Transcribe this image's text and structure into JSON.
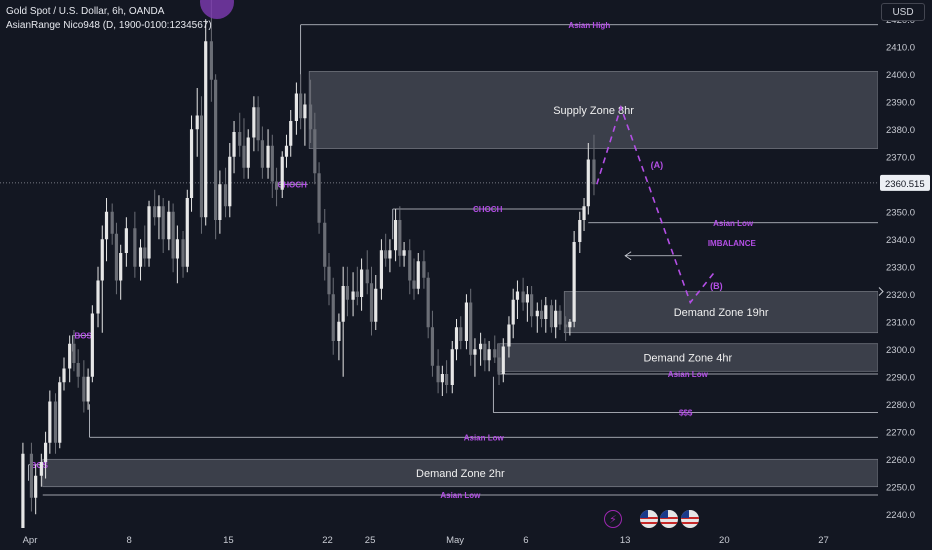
{
  "window": {
    "symbol_title": "Gold Spot / U.S. Dollar, 6h, OANDA",
    "indicator": "AsianRange Nico948 (D, 1900-0100:1234567)",
    "currency": "USD",
    "current_price": "2360.515"
  },
  "icons": [
    "flash-icon",
    "us-flag-icon",
    "us-flag-icon",
    "us-flag-icon"
  ],
  "colors": {
    "background": "#131722",
    "bull_candle": "#e6e6e6",
    "bear_candle": "#6b6e76",
    "annotation_purple": "#b44fe6",
    "zone_fill": "#5d606b",
    "line_white": "#cfd2da"
  },
  "chart_data": {
    "type": "candlestick",
    "symbol": "XAUUSD",
    "timeframe": "6h",
    "y_axis": {
      "min": 2235,
      "max": 2427,
      "ticks": [
        2240,
        2250,
        2260,
        2270,
        2280,
        2290,
        2300,
        2310,
        2320,
        2330,
        2340,
        2350,
        2360,
        2370,
        2380,
        2390,
        2400,
        2410,
        2420
      ]
    },
    "x_axis": {
      "labels": [
        {
          "label": "Apr",
          "day": 1
        },
        {
          "label": "8",
          "day": 8
        },
        {
          "label": "15",
          "day": 15
        },
        {
          "label": "22",
          "day": 22
        },
        {
          "label": "25",
          "day": 25
        },
        {
          "label": "May",
          "day": 31
        },
        {
          "label": "6",
          "day": 36
        },
        {
          "label": "13",
          "day": 43
        },
        {
          "label": "20",
          "day": 50
        },
        {
          "label": "27",
          "day": 57
        }
      ]
    },
    "candles": [
      {
        "day": 0.5,
        "o": 2231,
        "h": 2266,
        "l": 2228,
        "c": 2262
      },
      {
        "day": 1.1,
        "o": 2262,
        "h": 2266,
        "l": 2241,
        "c": 2246
      },
      {
        "day": 1.4,
        "o": 2246,
        "h": 2258,
        "l": 2240,
        "c": 2254
      },
      {
        "day": 1.8,
        "o": 2254,
        "h": 2262,
        "l": 2250,
        "c": 2259
      },
      {
        "day": 2.1,
        "o": 2259,
        "h": 2270,
        "l": 2253,
        "c": 2266
      },
      {
        "day": 2.4,
        "o": 2266,
        "h": 2285,
        "l": 2262,
        "c": 2281
      },
      {
        "day": 2.8,
        "o": 2281,
        "h": 2284,
        "l": 2262,
        "c": 2266
      },
      {
        "day": 3.1,
        "o": 2266,
        "h": 2290,
        "l": 2264,
        "c": 2288
      },
      {
        "day": 3.4,
        "o": 2288,
        "h": 2297,
        "l": 2285,
        "c": 2293
      },
      {
        "day": 3.8,
        "o": 2293,
        "h": 2305,
        "l": 2288,
        "c": 2302
      },
      {
        "day": 4.1,
        "o": 2302,
        "h": 2307,
        "l": 2292,
        "c": 2295
      },
      {
        "day": 4.4,
        "o": 2295,
        "h": 2300,
        "l": 2286,
        "c": 2290
      },
      {
        "day": 4.8,
        "o": 2290,
        "h": 2296,
        "l": 2277,
        "c": 2281
      },
      {
        "day": 5.1,
        "o": 2281,
        "h": 2293,
        "l": 2278,
        "c": 2290
      },
      {
        "day": 5.4,
        "o": 2290,
        "h": 2316,
        "l": 2288,
        "c": 2313
      },
      {
        "day": 5.8,
        "o": 2313,
        "h": 2330,
        "l": 2308,
        "c": 2325
      },
      {
        "day": 6.1,
        "o": 2325,
        "h": 2345,
        "l": 2306,
        "c": 2340
      },
      {
        "day": 6.4,
        "o": 2340,
        "h": 2355,
        "l": 2332,
        "c": 2350
      },
      {
        "day": 6.8,
        "o": 2350,
        "h": 2353,
        "l": 2338,
        "c": 2342
      },
      {
        "day": 7.1,
        "o": 2342,
        "h": 2346,
        "l": 2320,
        "c": 2325
      },
      {
        "day": 7.4,
        "o": 2325,
        "h": 2338,
        "l": 2318,
        "c": 2335
      },
      {
        "day": 7.8,
        "o": 2335,
        "h": 2348,
        "l": 2330,
        "c": 2344
      },
      {
        "day": 8.4,
        "o": 2344,
        "h": 2350,
        "l": 2326,
        "c": 2330
      },
      {
        "day": 8.8,
        "o": 2330,
        "h": 2340,
        "l": 2325,
        "c": 2337
      },
      {
        "day": 9.1,
        "o": 2337,
        "h": 2345,
        "l": 2330,
        "c": 2333
      },
      {
        "day": 9.4,
        "o": 2333,
        "h": 2354,
        "l": 2330,
        "c": 2352
      },
      {
        "day": 9.8,
        "o": 2352,
        "h": 2358,
        "l": 2345,
        "c": 2348
      },
      {
        "day": 10.1,
        "o": 2348,
        "h": 2356,
        "l": 2340,
        "c": 2352
      },
      {
        "day": 10.4,
        "o": 2352,
        "h": 2355,
        "l": 2335,
        "c": 2340
      },
      {
        "day": 10.8,
        "o": 2340,
        "h": 2354,
        "l": 2336,
        "c": 2350
      },
      {
        "day": 11.1,
        "o": 2350,
        "h": 2353,
        "l": 2328,
        "c": 2333
      },
      {
        "day": 11.4,
        "o": 2333,
        "h": 2345,
        "l": 2324,
        "c": 2340
      },
      {
        "day": 11.8,
        "o": 2340,
        "h": 2343,
        "l": 2326,
        "c": 2330
      },
      {
        "day": 12.1,
        "o": 2330,
        "h": 2358,
        "l": 2328,
        "c": 2355
      },
      {
        "day": 12.4,
        "o": 2355,
        "h": 2385,
        "l": 2350,
        "c": 2380
      },
      {
        "day": 12.8,
        "o": 2380,
        "h": 2395,
        "l": 2370,
        "c": 2385
      },
      {
        "day": 13.1,
        "o": 2385,
        "h": 2392,
        "l": 2342,
        "c": 2348
      },
      {
        "day": 13.4,
        "o": 2348,
        "h": 2420,
        "l": 2345,
        "c": 2412
      },
      {
        "day": 13.8,
        "o": 2412,
        "h": 2431,
        "l": 2390,
        "c": 2398
      },
      {
        "day": 14.1,
        "o": 2398,
        "h": 2400,
        "l": 2340,
        "c": 2347
      },
      {
        "day": 14.4,
        "o": 2347,
        "h": 2365,
        "l": 2342,
        "c": 2360
      },
      {
        "day": 14.8,
        "o": 2360,
        "h": 2366,
        "l": 2348,
        "c": 2352
      },
      {
        "day": 15.1,
        "o": 2352,
        "h": 2375,
        "l": 2348,
        "c": 2370
      },
      {
        "day": 15.4,
        "o": 2370,
        "h": 2383,
        "l": 2364,
        "c": 2379
      },
      {
        "day": 15.8,
        "o": 2379,
        "h": 2386,
        "l": 2370,
        "c": 2374
      },
      {
        "day": 16.1,
        "o": 2374,
        "h": 2384,
        "l": 2362,
        "c": 2366
      },
      {
        "day": 16.4,
        "o": 2366,
        "h": 2380,
        "l": 2362,
        "c": 2377
      },
      {
        "day": 16.8,
        "o": 2377,
        "h": 2392,
        "l": 2372,
        "c": 2388
      },
      {
        "day": 17.1,
        "o": 2388,
        "h": 2392,
        "l": 2372,
        "c": 2376
      },
      {
        "day": 17.4,
        "o": 2376,
        "h": 2381,
        "l": 2362,
        "c": 2366
      },
      {
        "day": 17.8,
        "o": 2366,
        "h": 2380,
        "l": 2362,
        "c": 2374
      },
      {
        "day": 18.1,
        "o": 2374,
        "h": 2378,
        "l": 2355,
        "c": 2361
      },
      {
        "day": 18.4,
        "o": 2361,
        "h": 2366,
        "l": 2352,
        "c": 2358
      },
      {
        "day": 18.8,
        "o": 2358,
        "h": 2372,
        "l": 2355,
        "c": 2370
      },
      {
        "day": 19.1,
        "o": 2370,
        "h": 2378,
        "l": 2366,
        "c": 2374
      },
      {
        "day": 19.4,
        "o": 2374,
        "h": 2387,
        "l": 2370,
        "c": 2383
      },
      {
        "day": 19.8,
        "o": 2383,
        "h": 2397,
        "l": 2378,
        "c": 2393
      },
      {
        "day": 20.1,
        "o": 2393,
        "h": 2400,
        "l": 2380,
        "c": 2384
      },
      {
        "day": 20.4,
        "o": 2384,
        "h": 2393,
        "l": 2374,
        "c": 2389
      },
      {
        "day": 20.8,
        "o": 2389,
        "h": 2398,
        "l": 2375,
        "c": 2380
      },
      {
        "day": 21.1,
        "o": 2380,
        "h": 2386,
        "l": 2360,
        "c": 2364
      },
      {
        "day": 21.4,
        "o": 2364,
        "h": 2368,
        "l": 2342,
        "c": 2346
      },
      {
        "day": 21.8,
        "o": 2346,
        "h": 2351,
        "l": 2325,
        "c": 2330
      },
      {
        "day": 22.1,
        "o": 2330,
        "h": 2335,
        "l": 2316,
        "c": 2320
      },
      {
        "day": 22.4,
        "o": 2320,
        "h": 2326,
        "l": 2298,
        "c": 2303
      },
      {
        "day": 22.8,
        "o": 2303,
        "h": 2313,
        "l": 2296,
        "c": 2310
      },
      {
        "day": 23.1,
        "o": 2310,
        "h": 2330,
        "l": 2290,
        "c": 2323
      },
      {
        "day": 23.4,
        "o": 2323,
        "h": 2330,
        "l": 2312,
        "c": 2318
      },
      {
        "day": 23.8,
        "o": 2318,
        "h": 2328,
        "l": 2312,
        "c": 2321
      },
      {
        "day": 24.1,
        "o": 2321,
        "h": 2330,
        "l": 2316,
        "c": 2319
      },
      {
        "day": 24.4,
        "o": 2319,
        "h": 2333,
        "l": 2314,
        "c": 2329
      },
      {
        "day": 24.8,
        "o": 2329,
        "h": 2336,
        "l": 2320,
        "c": 2324
      },
      {
        "day": 25.1,
        "o": 2324,
        "h": 2330,
        "l": 2305,
        "c": 2310
      },
      {
        "day": 25.4,
        "o": 2310,
        "h": 2327,
        "l": 2307,
        "c": 2322
      },
      {
        "day": 25.8,
        "o": 2322,
        "h": 2340,
        "l": 2318,
        "c": 2336
      },
      {
        "day": 26.1,
        "o": 2336,
        "h": 2342,
        "l": 2330,
        "c": 2333
      },
      {
        "day": 26.4,
        "o": 2333,
        "h": 2340,
        "l": 2328,
        "c": 2336
      },
      {
        "day": 26.8,
        "o": 2336,
        "h": 2351,
        "l": 2332,
        "c": 2347
      },
      {
        "day": 27.1,
        "o": 2347,
        "h": 2352,
        "l": 2330,
        "c": 2334
      },
      {
        "day": 27.4,
        "o": 2334,
        "h": 2339,
        "l": 2330,
        "c": 2336
      },
      {
        "day": 27.8,
        "o": 2336,
        "h": 2340,
        "l": 2320,
        "c": 2325
      },
      {
        "day": 28.1,
        "o": 2325,
        "h": 2333,
        "l": 2318,
        "c": 2322
      },
      {
        "day": 28.4,
        "o": 2322,
        "h": 2335,
        "l": 2320,
        "c": 2332
      },
      {
        "day": 28.8,
        "o": 2332,
        "h": 2336,
        "l": 2322,
        "c": 2326
      },
      {
        "day": 29.1,
        "o": 2326,
        "h": 2328,
        "l": 2304,
        "c": 2308
      },
      {
        "day": 29.4,
        "o": 2308,
        "h": 2314,
        "l": 2290,
        "c": 2294
      },
      {
        "day": 29.8,
        "o": 2294,
        "h": 2300,
        "l": 2284,
        "c": 2288
      },
      {
        "day": 30.1,
        "o": 2288,
        "h": 2294,
        "l": 2283,
        "c": 2291
      },
      {
        "day": 30.4,
        "o": 2291,
        "h": 2296,
        "l": 2284,
        "c": 2287
      },
      {
        "day": 30.8,
        "o": 2287,
        "h": 2303,
        "l": 2284,
        "c": 2300
      },
      {
        "day": 31.1,
        "o": 2300,
        "h": 2311,
        "l": 2296,
        "c": 2308
      },
      {
        "day": 31.4,
        "o": 2308,
        "h": 2312,
        "l": 2300,
        "c": 2303
      },
      {
        "day": 31.8,
        "o": 2303,
        "h": 2320,
        "l": 2300,
        "c": 2317
      },
      {
        "day": 32.1,
        "o": 2317,
        "h": 2322,
        "l": 2294,
        "c": 2298
      },
      {
        "day": 32.4,
        "o": 2298,
        "h": 2304,
        "l": 2290,
        "c": 2300
      },
      {
        "day": 32.8,
        "o": 2300,
        "h": 2306,
        "l": 2294,
        "c": 2302
      },
      {
        "day": 33.1,
        "o": 2302,
        "h": 2304,
        "l": 2292,
        "c": 2296
      },
      {
        "day": 33.4,
        "o": 2296,
        "h": 2303,
        "l": 2292,
        "c": 2300
      },
      {
        "day": 33.8,
        "o": 2300,
        "h": 2305,
        "l": 2295,
        "c": 2297
      },
      {
        "day": 34.1,
        "o": 2297,
        "h": 2302,
        "l": 2287,
        "c": 2291
      },
      {
        "day": 34.4,
        "o": 2291,
        "h": 2304,
        "l": 2288,
        "c": 2301
      },
      {
        "day": 34.8,
        "o": 2301,
        "h": 2312,
        "l": 2297,
        "c": 2309
      },
      {
        "day": 35.1,
        "o": 2309,
        "h": 2322,
        "l": 2304,
        "c": 2318
      },
      {
        "day": 35.4,
        "o": 2318,
        "h": 2325,
        "l": 2311,
        "c": 2321
      },
      {
        "day": 35.8,
        "o": 2321,
        "h": 2326,
        "l": 2314,
        "c": 2317
      },
      {
        "day": 36.1,
        "o": 2317,
        "h": 2323,
        "l": 2310,
        "c": 2320
      },
      {
        "day": 36.4,
        "o": 2320,
        "h": 2323,
        "l": 2308,
        "c": 2312
      },
      {
        "day": 36.8,
        "o": 2312,
        "h": 2317,
        "l": 2306,
        "c": 2314
      },
      {
        "day": 37.1,
        "o": 2314,
        "h": 2318,
        "l": 2308,
        "c": 2311
      },
      {
        "day": 37.4,
        "o": 2311,
        "h": 2319,
        "l": 2306,
        "c": 2316
      },
      {
        "day": 37.8,
        "o": 2316,
        "h": 2318,
        "l": 2306,
        "c": 2308
      },
      {
        "day": 38.1,
        "o": 2308,
        "h": 2318,
        "l": 2304,
        "c": 2314
      },
      {
        "day": 38.4,
        "o": 2314,
        "h": 2316,
        "l": 2307,
        "c": 2309
      },
      {
        "day": 38.8,
        "o": 2309,
        "h": 2312,
        "l": 2303,
        "c": 2308
      },
      {
        "day": 39.1,
        "o": 2308,
        "h": 2311,
        "l": 2305,
        "c": 2310
      },
      {
        "day": 39.4,
        "o": 2310,
        "h": 2343,
        "l": 2308,
        "c": 2339
      },
      {
        "day": 39.8,
        "o": 2339,
        "h": 2350,
        "l": 2335,
        "c": 2347
      },
      {
        "day": 40.1,
        "o": 2347,
        "h": 2355,
        "l": 2343,
        "c": 2352
      },
      {
        "day": 40.4,
        "o": 2352,
        "h": 2375,
        "l": 2349,
        "c": 2369
      },
      {
        "day": 40.8,
        "o": 2369,
        "h": 2378,
        "l": 2356,
        "c": 2360
      }
    ],
    "zones": [
      {
        "label": "Supply Zone 8hr",
        "from_day": 20.7,
        "low": 2373,
        "high": 2401
      },
      {
        "label": "Demand Zone 19hr",
        "from_day": 38.7,
        "low": 2306,
        "high": 2321
      },
      {
        "label": "Demand Zone 4hr",
        "from_day": 34.0,
        "low": 2292,
        "high": 2302
      },
      {
        "label": "Demand Zone 2hr",
        "from_day": 1.9,
        "low": 2250,
        "high": 2260
      }
    ],
    "levels": [
      {
        "label": "Asian High",
        "price": 2418,
        "from_day": 20.1
      },
      {
        "label": "CHOCH",
        "price": 2360,
        "from_day": 18.4,
        "to_day": 20.6
      },
      {
        "label": "CHOCH",
        "price": 2351,
        "from_day": 26.6,
        "to_day": 40.0
      },
      {
        "label": "Asian Low",
        "price": 2346,
        "from_day": 40.4
      },
      {
        "label": "IMBALANCE",
        "price": 2334,
        "from_day": 43.0,
        "to_day": 47.0
      },
      {
        "label": "Asian Low",
        "price": 2291,
        "from_day": 34.0
      },
      {
        "label": "$$$",
        "price": 2277,
        "from_day": 33.7
      },
      {
        "label": "Asian Low",
        "price": 2268,
        "from_day": 5.2
      },
      {
        "label": "Asian Low",
        "price": 2247,
        "from_day": 1.9
      },
      {
        "label": "BOS",
        "price": 2305,
        "from_day": 4.0,
        "to_day": 5.4
      },
      {
        "label": "BOS",
        "price": 2258,
        "from_day": 0.9,
        "to_day": 2.0
      }
    ],
    "projection": {
      "points": [
        {
          "day": 41.0,
          "price": 2360
        },
        {
          "day": 42.7,
          "price": 2388
        },
        {
          "day": 47.6,
          "price": 2317
        },
        {
          "day": 49.3,
          "price": 2328
        }
      ],
      "labels": [
        "(A)",
        "(B)"
      ]
    },
    "current_price_line": 2360.5
  }
}
